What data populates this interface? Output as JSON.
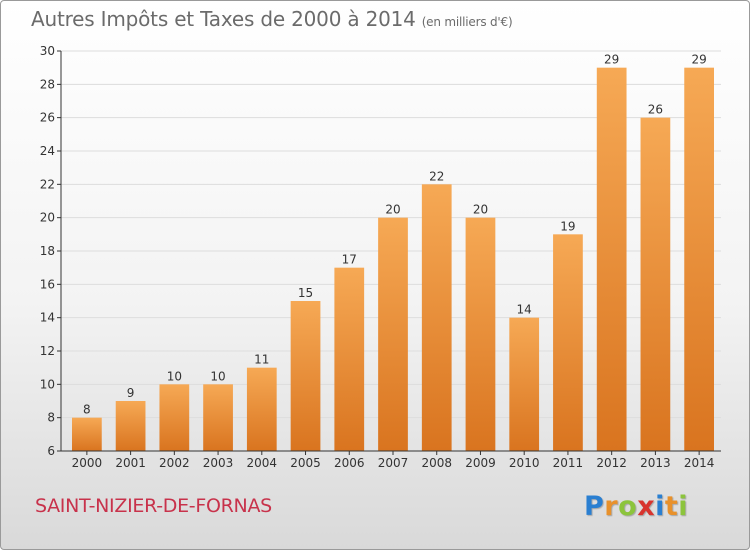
{
  "title": "Autres Impôts et Taxes de 2000 à 2014",
  "subtitle": "(en milliers d'€)",
  "commune": "SAINT-NIZIER-DE-FORNAS",
  "logo": {
    "letters": [
      "P",
      "r",
      "o",
      "x",
      "i",
      "t",
      "i"
    ],
    "colors": [
      "#2a7fd1",
      "#e8912b",
      "#8cc43c",
      "#d8342e",
      "#2a7fd1",
      "#e8912b",
      "#8cc43c"
    ]
  },
  "colors": {
    "bar_top": "#f6a955",
    "bar_bottom": "#d9741f",
    "axis": "#333333",
    "grid": "#dddddd",
    "text": "#333333"
  },
  "chart_data": {
    "type": "bar",
    "title": "Autres Impôts et Taxes de 2000 à 2014",
    "xlabel": "",
    "ylabel": "",
    "ylim": [
      6,
      30
    ],
    "yticks": [
      6,
      8,
      10,
      12,
      14,
      16,
      18,
      20,
      22,
      24,
      26,
      28,
      30
    ],
    "categories": [
      "2000",
      "2001",
      "2002",
      "2003",
      "2004",
      "2005",
      "2006",
      "2007",
      "2008",
      "2009",
      "2010",
      "2011",
      "2012",
      "2013",
      "2014"
    ],
    "values": [
      8,
      9,
      10,
      10,
      11,
      15,
      17,
      20,
      22,
      20,
      14,
      19,
      29,
      26,
      29
    ]
  }
}
